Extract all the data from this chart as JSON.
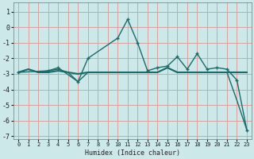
{
  "title": "",
  "xlabel": "Humidex (Indice chaleur)",
  "ylabel": "",
  "background_color": "#cce8e8",
  "grid_color": "#d9a0a0",
  "line_color": "#1a6b6b",
  "xlim": [
    -0.5,
    23.5
  ],
  "ylim": [
    -7.2,
    1.6
  ],
  "yticks": [
    1,
    0,
    -1,
    -2,
    -3,
    -4,
    -5,
    -6,
    -7
  ],
  "xticks": [
    0,
    1,
    2,
    3,
    4,
    5,
    6,
    7,
    8,
    9,
    10,
    11,
    12,
    13,
    14,
    15,
    16,
    17,
    18,
    19,
    20,
    21,
    22,
    23
  ],
  "series": [
    {
      "x": [
        0,
        1,
        2,
        3,
        4,
        5,
        6,
        7,
        8,
        9,
        10,
        11,
        12,
        13,
        14,
        15,
        16,
        17,
        18,
        19,
        20,
        21,
        22,
        23
      ],
      "y": [
        -2.9,
        -2.7,
        -2.9,
        -2.9,
        -2.8,
        -2.9,
        -3.0,
        -2.9,
        -2.9,
        -2.9,
        -2.9,
        -2.9,
        -2.9,
        -2.9,
        -2.9,
        -2.6,
        -2.9,
        -2.9,
        -2.9,
        -2.9,
        -2.9,
        -2.9,
        -2.9,
        -2.9
      ],
      "marker": null,
      "linewidth": 1.5
    },
    {
      "x": [
        0,
        1,
        2,
        3,
        4,
        5,
        6,
        7,
        8,
        9,
        10,
        11,
        12,
        13,
        14,
        15,
        16,
        17,
        18,
        19,
        20,
        21,
        22,
        23
      ],
      "y": [
        -2.9,
        -2.7,
        -2.9,
        -2.8,
        -2.7,
        -2.9,
        -3.5,
        -2.9,
        -2.9,
        -2.9,
        -2.9,
        -2.9,
        -2.9,
        -2.9,
        -2.9,
        -2.6,
        -2.9,
        -2.9,
        -2.9,
        -2.9,
        -2.9,
        -2.9,
        -4.7,
        -6.6
      ],
      "marker": null,
      "linewidth": 1.0
    },
    {
      "x": [
        0,
        3,
        4,
        6,
        7,
        10,
        11,
        12,
        13,
        14,
        15,
        16,
        17,
        18,
        19,
        20,
        21,
        22,
        23
      ],
      "y": [
        -2.9,
        -2.8,
        -2.6,
        -3.5,
        -2.0,
        -0.7,
        0.5,
        -1.0,
        -2.8,
        -2.6,
        -2.5,
        -1.9,
        -2.7,
        -1.7,
        -2.7,
        -2.6,
        -2.7,
        -3.4,
        -6.6
      ],
      "marker": "+",
      "linewidth": 1.0
    }
  ]
}
